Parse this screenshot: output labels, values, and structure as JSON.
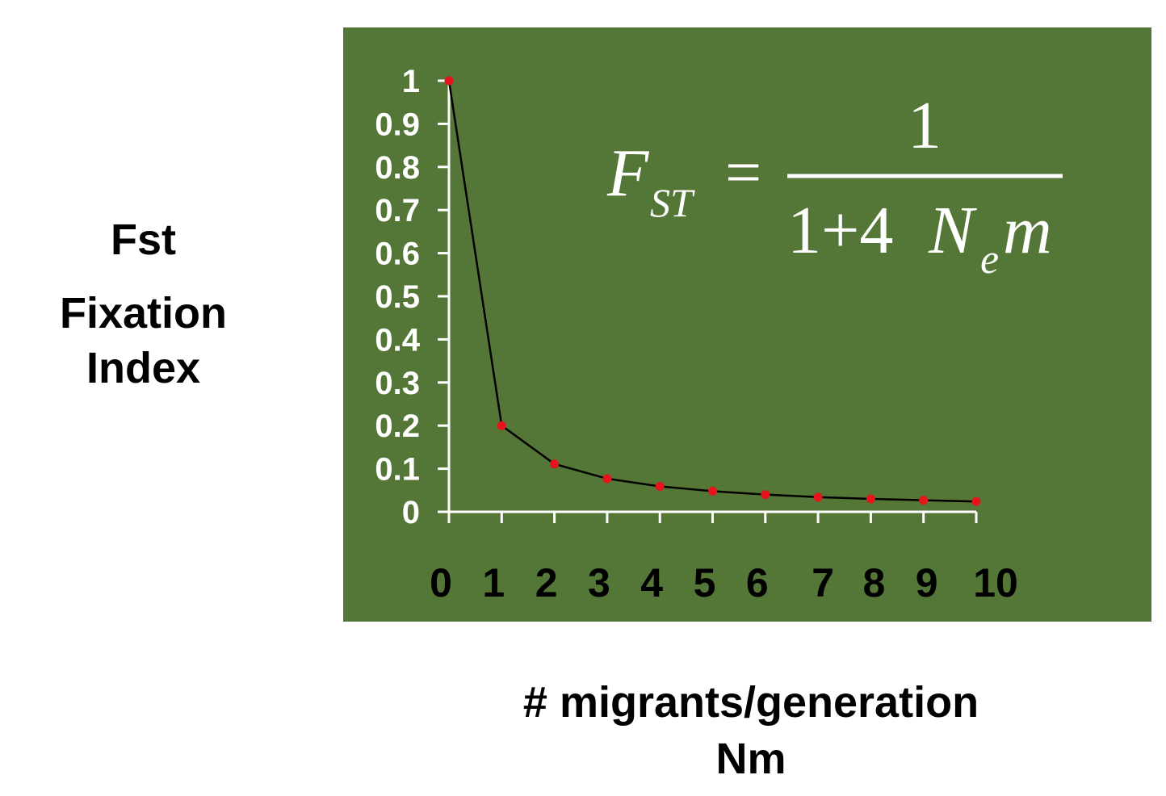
{
  "chart_data": {
    "type": "line",
    "title": "",
    "ylabel_lines": [
      "Fst",
      "Fixation",
      "Index"
    ],
    "xlabel_lines": [
      "# migrants/generation",
      "Nm"
    ],
    "x": [
      0,
      1,
      2,
      3,
      4,
      5,
      6,
      7,
      8,
      9,
      10
    ],
    "y": [
      1.0,
      0.2,
      0.111,
      0.077,
      0.059,
      0.048,
      0.04,
      0.034,
      0.03,
      0.027,
      0.024
    ],
    "ylim": [
      0,
      1
    ],
    "xlim": [
      0,
      10
    ],
    "yticks": [
      "0",
      "0.1",
      "0.2",
      "0.3",
      "0.4",
      "0.5",
      "0.6",
      "0.7",
      "0.8",
      "0.9",
      "1"
    ],
    "xticks": [
      "0",
      "1",
      "2",
      "3",
      "4",
      "5",
      "6",
      "7",
      "8",
      "9",
      "10"
    ],
    "grid": false,
    "legend": "none",
    "formula": {
      "lhs": "F",
      "lhs_sub": "ST",
      "equals": "=",
      "numerator": "1",
      "denominator_prefix": "1+4",
      "denominator_N": "N",
      "denominator_sub": "e",
      "denominator_m": "m"
    },
    "colors": {
      "panel": "#547636",
      "line": "#000000",
      "marker": "#e8141b",
      "axis": "#ffffff",
      "ytick_text": "#ffffff",
      "xtick_text": "#000000",
      "formula_text": "#ffffff"
    }
  }
}
